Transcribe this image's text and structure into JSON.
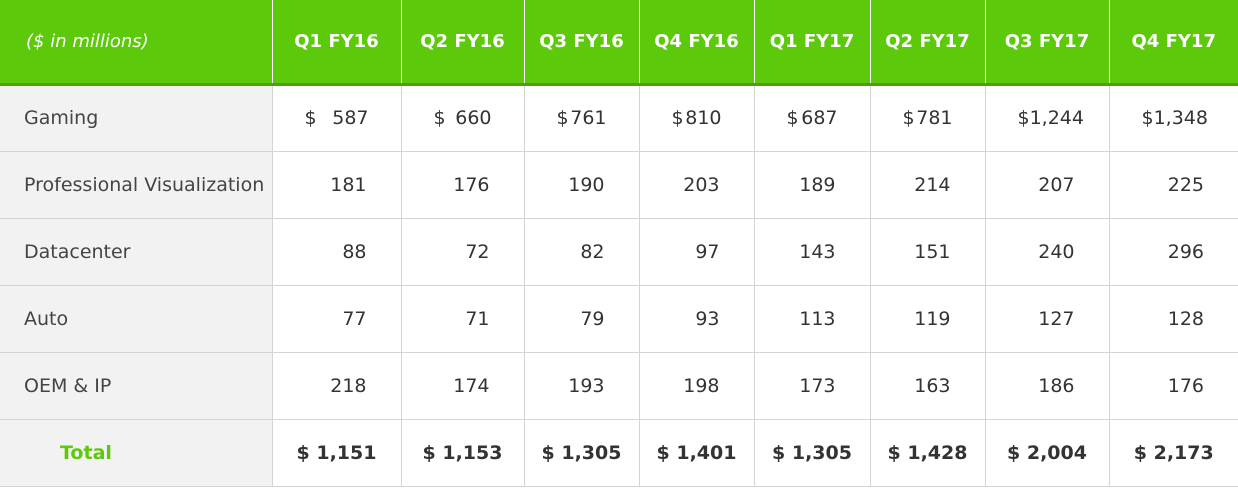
{
  "table": {
    "header_label": "($ in millions)",
    "columns": [
      "Q1 FY16",
      "Q2 FY16",
      "Q3 FY16",
      "Q4 FY16",
      "Q1 FY17",
      "Q2 FY17",
      "Q3 FY17",
      "Q4 FY17"
    ],
    "currency_symbol": "$",
    "rows": [
      {
        "label": "Gaming",
        "values": [
          "587",
          "660",
          "761",
          "810",
          "687",
          "781",
          "1,244",
          "1,348"
        ]
      },
      {
        "label": "Professional Visualization",
        "values": [
          "181",
          "176",
          "190",
          "203",
          "189",
          "214",
          "207",
          "225"
        ]
      },
      {
        "label": "Datacenter",
        "values": [
          "88",
          "72",
          "82",
          "97",
          "143",
          "151",
          "240",
          "296"
        ]
      },
      {
        "label": "Auto",
        "values": [
          "77",
          "71",
          "79",
          "93",
          "113",
          "119",
          "127",
          "128"
        ]
      },
      {
        "label": "OEM & IP",
        "values": [
          "218",
          "174",
          "193",
          "198",
          "173",
          "163",
          "186",
          "176"
        ]
      }
    ],
    "total": {
      "label": "Total",
      "values": [
        "$ 1,151",
        "$ 1,153",
        "$ 1,305",
        "$ 1,401",
        "$ 1,305",
        "$ 1,428",
        "$ 2,004",
        "$ 2,173"
      ]
    }
  },
  "colors": {
    "header_bg": "#5cc90a",
    "header_text": "#ffffff",
    "label_bg": "#f2f2f2",
    "total_label": "#5cc90a"
  }
}
